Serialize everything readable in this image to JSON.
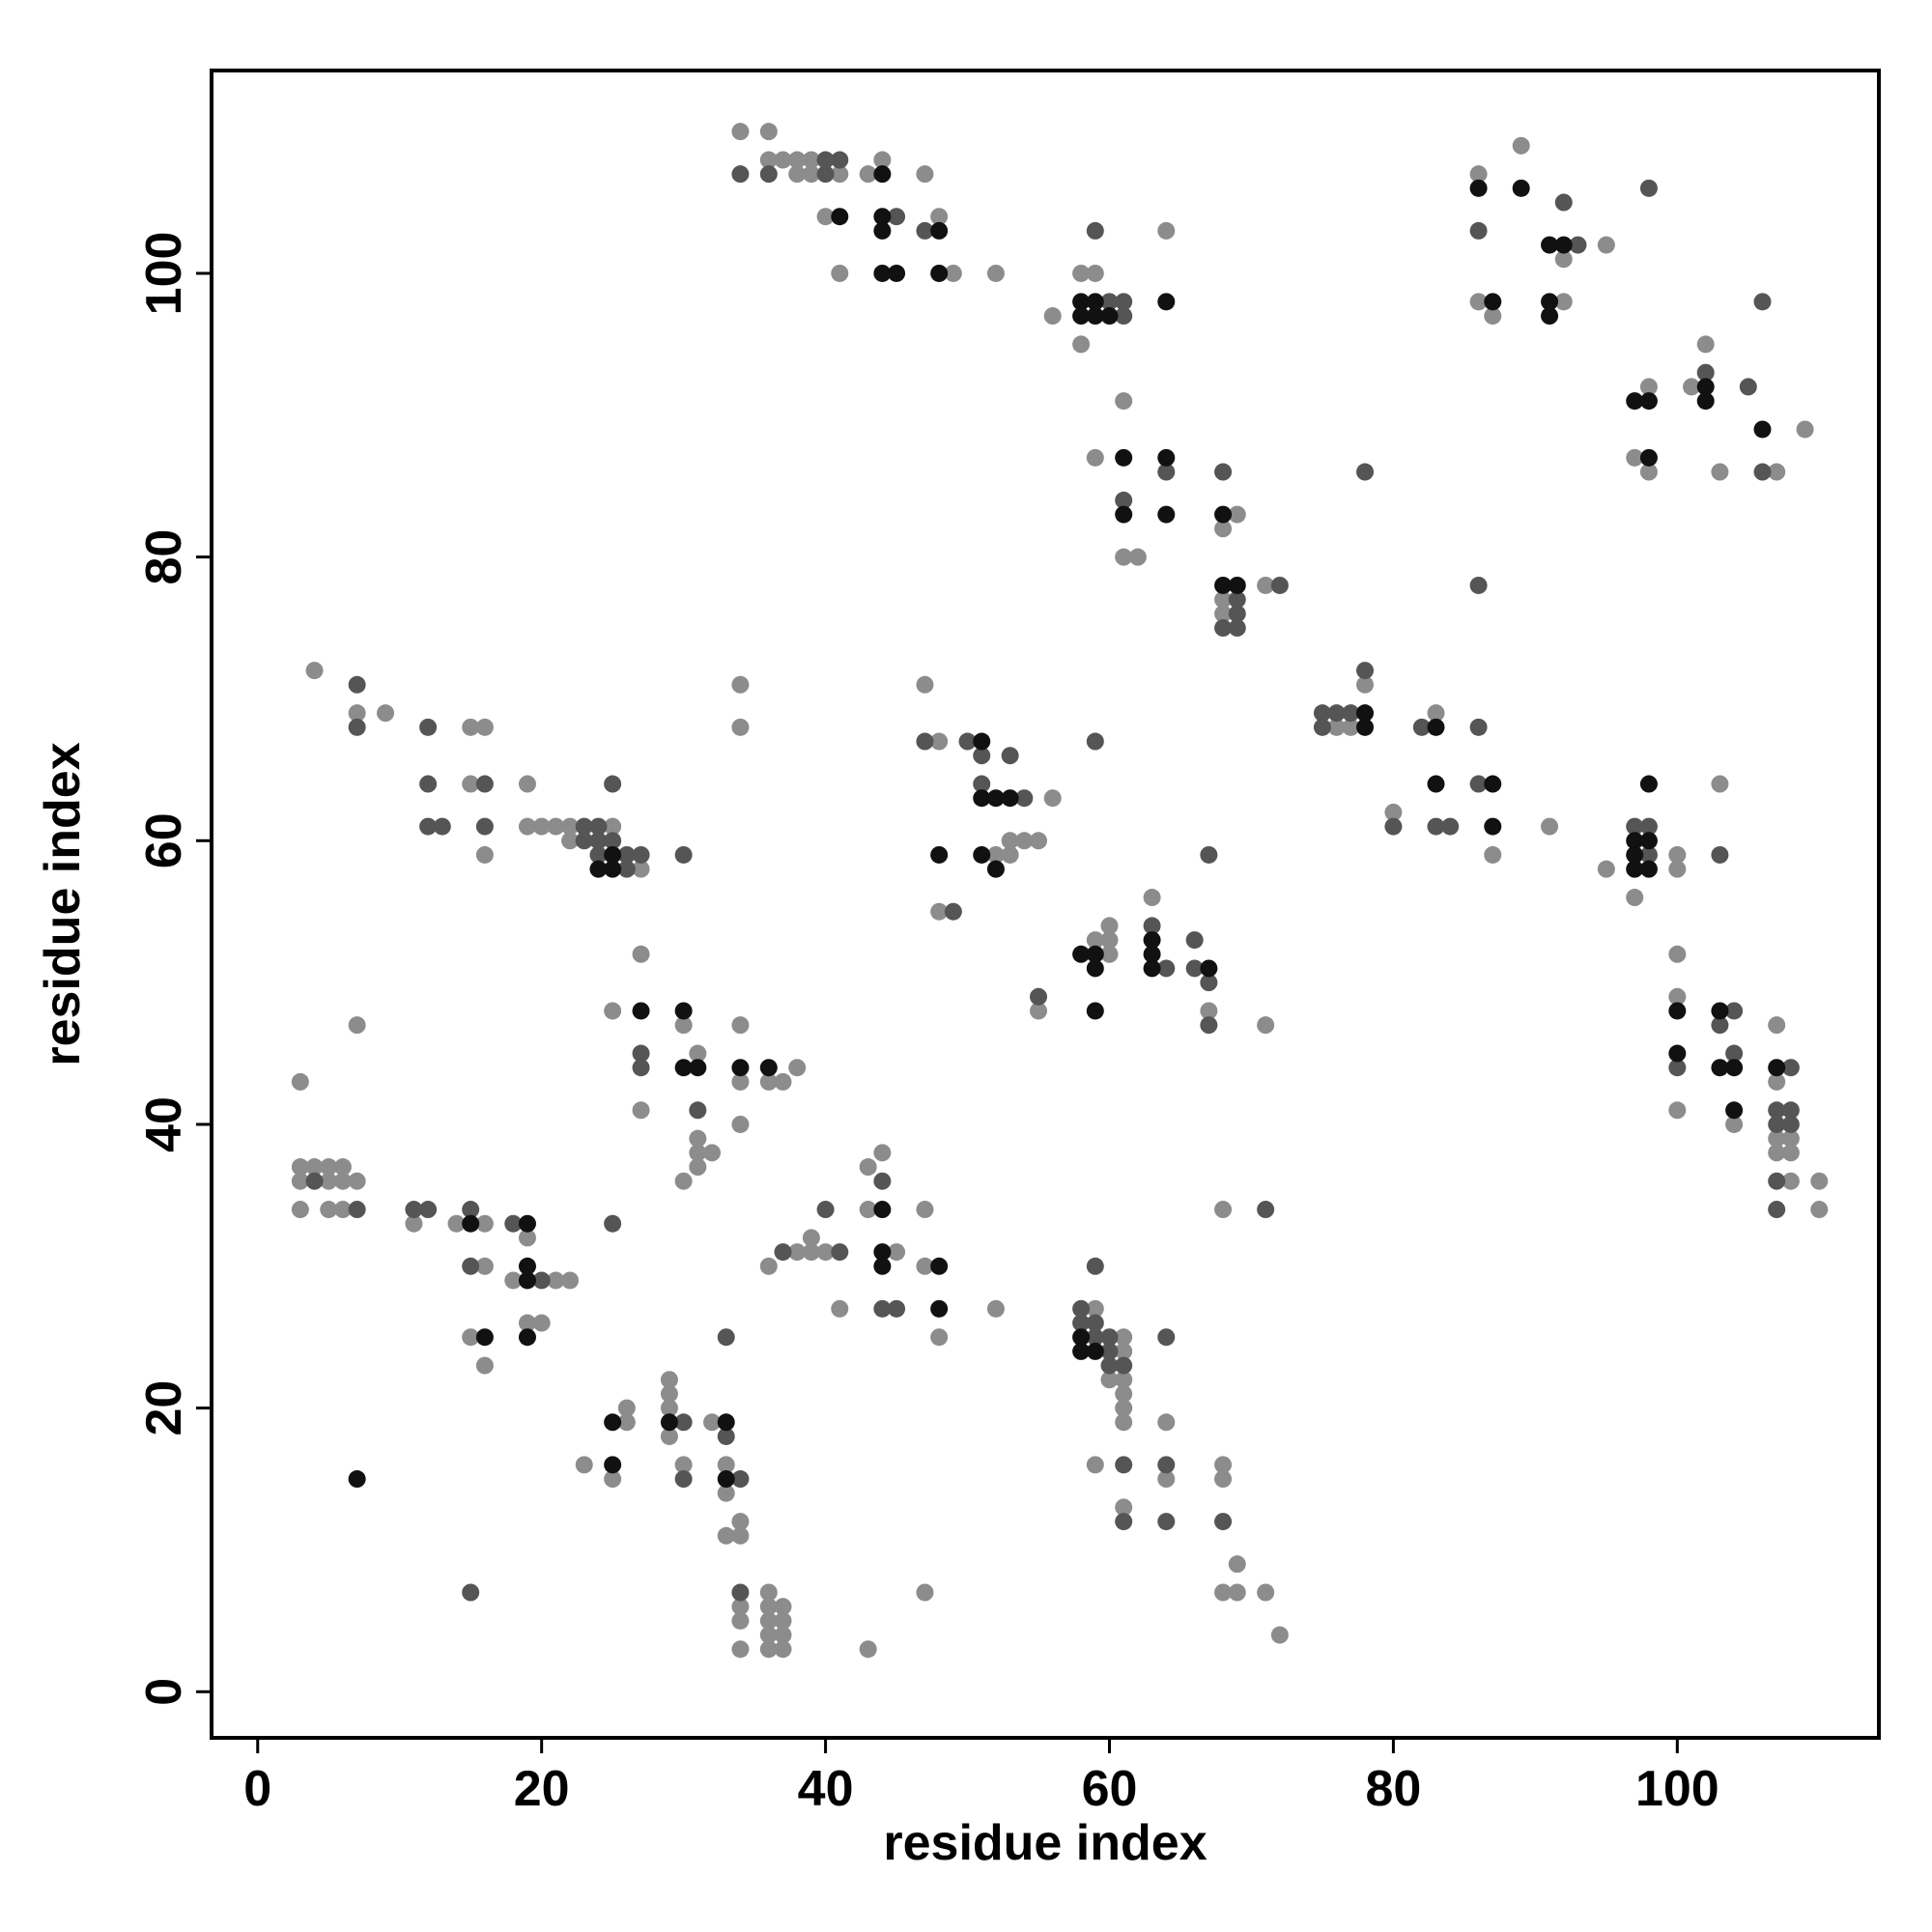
{
  "chart_data": {
    "type": "scatter",
    "x_label": "residue index",
    "y_label": "residue index",
    "xlim": [
      -3.25,
      114.2
    ],
    "ylim": [
      -3.25,
      114.3
    ],
    "xticks": [
      0,
      20,
      40,
      60,
      80,
      100
    ],
    "yticks": [
      0,
      20,
      40,
      60,
      80,
      100
    ],
    "series": [
      {
        "color": "#8c8c8c",
        "x": [
          34,
          36,
          36,
          37,
          38,
          39,
          38,
          39,
          41,
          43,
          44,
          47,
          40,
          48,
          41,
          49,
          52,
          64,
          58,
          59,
          56,
          58,
          61,
          59,
          61,
          62,
          69,
          68,
          68,
          68,
          71,
          86,
          89,
          95,
          92,
          86,
          92,
          87,
          102,
          98,
          101,
          97,
          109,
          98,
          103,
          107,
          4,
          7,
          9,
          15,
          16,
          15,
          16,
          19,
          19,
          20,
          21,
          22,
          25,
          22,
          27,
          34,
          34,
          47,
          48,
          56,
          53,
          54,
          55,
          52,
          53,
          48,
          63,
          60,
          59,
          60,
          60,
          55,
          67,
          71,
          78,
          76,
          77,
          83,
          80,
          87,
          91,
          103,
          100,
          95,
          100,
          97,
          100,
          100,
          107,
          100,
          104,
          107,
          108,
          107,
          108,
          108,
          110,
          110,
          107,
          3,
          3,
          4,
          5,
          6,
          3,
          5,
          6,
          7,
          3,
          5,
          6,
          7,
          11,
          14,
          16,
          19,
          16,
          18,
          21,
          22,
          19,
          20,
          15,
          16,
          25,
          27,
          30,
          31,
          34,
          34,
          36,
          37,
          38,
          27,
          31,
          31,
          32,
          31,
          30,
          34,
          43,
          44,
          43,
          47,
          36,
          38,
          39,
          40,
          39,
          45,
          47,
          41,
          48,
          52,
          23,
          26,
          26,
          25,
          29,
          29,
          29,
          29,
          30,
          32,
          33,
          33,
          34,
          33,
          34,
          34,
          34,
          34,
          36,
          36,
          37,
          36,
          37,
          36,
          37,
          36,
          37,
          43,
          47,
          59,
          61,
          61,
          60,
          61,
          61,
          61,
          61,
          64,
          59,
          64,
          61,
          68,
          68,
          69,
          68,
          69,
          71,
          72,
          68
        ],
        "values": [
          110,
          110,
          108,
          108,
          108,
          108,
          107,
          107,
          107,
          107,
          108,
          107,
          104,
          104,
          100,
          100,
          100,
          103,
          100,
          100,
          97,
          95,
          91,
          87,
          80,
          80,
          83,
          82,
          77,
          76,
          78,
          107,
          109,
          102,
          101,
          98,
          98,
          97,
          95,
          92,
          92,
          87,
          89,
          86,
          86,
          86,
          72,
          69,
          69,
          68,
          68,
          64,
          59,
          64,
          61,
          61,
          61,
          61,
          61,
          60,
          58,
          71,
          68,
          71,
          67,
          63,
          60,
          60,
          60,
          59,
          59,
          55,
          56,
          54,
          53,
          53,
          52,
          48,
          48,
          47,
          71,
          68,
          68,
          69,
          62,
          59,
          61,
          64,
          59,
          58,
          58,
          56,
          52,
          49,
          47,
          41,
          40,
          39,
          39,
          38,
          38,
          36,
          36,
          34,
          43,
          43,
          37,
          37,
          37,
          37,
          36,
          36,
          36,
          36,
          34,
          34,
          34,
          47,
          33,
          33,
          33,
          32,
          30,
          29,
          29,
          29,
          26,
          26,
          25,
          23,
          48,
          52,
          47,
          45,
          47,
          43,
          43,
          43,
          44,
          41,
          39,
          38,
          38,
          37,
          36,
          40,
          37,
          38,
          34,
          34,
          30,
          31,
          31,
          31,
          32,
          31,
          30,
          27,
          25,
          27,
          16,
          19,
          20,
          15,
          22,
          21,
          20,
          18,
          16,
          19,
          16,
          14,
          12,
          11,
          11,
          6,
          5,
          3,
          7,
          6,
          6,
          5,
          5,
          4,
          4,
          3,
          3,
          3,
          7,
          27,
          25,
          24,
          22,
          22,
          21,
          20,
          19,
          19,
          16,
          15,
          13,
          16,
          15,
          9,
          7,
          7,
          7,
          4,
          34
        ]
      },
      {
        "color": "#555555",
        "x": [
          34,
          36,
          40,
          41,
          40,
          45,
          47,
          59,
          60,
          61,
          61,
          64,
          61,
          68,
          69,
          69,
          68,
          69,
          72,
          78,
          86,
          92,
          93,
          98,
          102,
          105,
          106,
          106,
          7,
          7,
          12,
          12,
          16,
          12,
          13,
          16,
          23,
          24,
          23,
          24,
          25,
          25,
          24,
          26,
          27,
          26,
          30,
          47,
          50,
          51,
          53,
          51,
          54,
          49,
          59,
          63,
          66,
          64,
          66,
          67,
          67,
          55,
          67,
          75,
          76,
          77,
          78,
          75,
          82,
          86,
          80,
          86,
          83,
          84,
          97,
          98,
          98,
          103,
          104,
          103,
          104,
          100,
          108,
          107,
          108,
          107,
          108,
          107,
          107,
          4,
          7,
          11,
          12,
          15,
          18,
          15,
          20,
          27,
          27,
          31,
          25,
          40,
          44,
          37,
          41,
          44,
          45,
          30,
          30,
          33,
          33,
          34,
          34,
          58,
          58,
          59,
          60,
          59,
          60,
          60,
          61,
          59,
          64,
          61,
          64,
          61,
          64,
          68,
          71,
          86,
          15
        ],
        "values": [
          107,
          107,
          108,
          108,
          107,
          104,
          103,
          103,
          98,
          98,
          97,
          86,
          84,
          86,
          77,
          76,
          75,
          75,
          78,
          86,
          103,
          105,
          102,
          106,
          93,
          92,
          86,
          98,
          71,
          68,
          68,
          64,
          64,
          61,
          61,
          61,
          61,
          61,
          60,
          60,
          60,
          64,
          59,
          59,
          59,
          58,
          59,
          67,
          67,
          66,
          66,
          64,
          63,
          55,
          67,
          54,
          53,
          51,
          51,
          50,
          59,
          49,
          47,
          69,
          69,
          69,
          72,
          68,
          68,
          68,
          61,
          64,
          61,
          61,
          61,
          61,
          59,
          59,
          48,
          47,
          45,
          44,
          44,
          41,
          41,
          40,
          40,
          36,
          34,
          36,
          34,
          34,
          34,
          34,
          33,
          30,
          29,
          45,
          44,
          41,
          33,
          34,
          36,
          31,
          31,
          27,
          27,
          19,
          15,
          18,
          25,
          15,
          7,
          27,
          26,
          26,
          25,
          25,
          24,
          23,
          23,
          30,
          25,
          16,
          16,
          12,
          12,
          12,
          34,
          78,
          7
        ]
      },
      {
        "color": "#111111",
        "x": [
          44,
          41,
          44,
          44,
          48,
          44,
          45,
          48,
          58,
          59,
          58,
          59,
          60,
          64,
          61,
          64,
          61,
          64,
          68,
          68,
          69,
          86,
          89,
          91,
          92,
          87,
          91,
          91,
          102,
          97,
          98,
          102,
          98,
          106,
          25,
          24,
          25,
          51,
          51,
          52,
          53,
          48,
          51,
          52,
          63,
          58,
          59,
          63,
          59,
          63,
          67,
          59,
          78,
          78,
          83,
          83,
          87,
          87,
          98,
          97,
          98,
          97,
          97,
          98,
          100,
          103,
          100,
          103,
          104,
          107,
          104,
          15,
          19,
          19,
          19,
          16,
          19,
          7,
          27,
          30,
          30,
          31,
          34,
          36,
          44,
          44,
          44,
          48,
          48,
          25,
          25,
          29,
          33,
          33,
          58,
          58,
          59
        ],
        "values": [
          107,
          104,
          104,
          103,
          103,
          100,
          100,
          100,
          98,
          98,
          97,
          97,
          97,
          98,
          87,
          87,
          83,
          83,
          83,
          78,
          78,
          106,
          106,
          102,
          102,
          98,
          98,
          97,
          92,
          91,
          91,
          91,
          87,
          89,
          59,
          58,
          58,
          67,
          63,
          63,
          63,
          59,
          59,
          58,
          53,
          52,
          52,
          52,
          51,
          51,
          51,
          48,
          69,
          68,
          68,
          64,
          64,
          61,
          64,
          60,
          60,
          59,
          58,
          58,
          48,
          48,
          45,
          44,
          44,
          44,
          41,
          33,
          33,
          30,
          29,
          25,
          25,
          15,
          48,
          48,
          44,
          44,
          44,
          44,
          34,
          31,
          30,
          30,
          27,
          19,
          16,
          19,
          19,
          15,
          25,
          24,
          24
        ]
      }
    ]
  }
}
